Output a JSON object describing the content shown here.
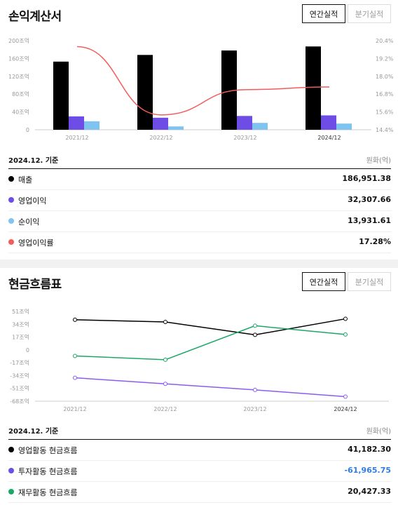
{
  "income": {
    "title": "손익계산서",
    "tabs": [
      {
        "label": "연간실적",
        "active": true
      },
      {
        "label": "분기실적",
        "active": false
      }
    ],
    "basis_label": "2024.12. 기준",
    "unit_label": "원화(억)",
    "rows": [
      {
        "label": "매출",
        "value": "186,951.38",
        "color": "#000000"
      },
      {
        "label": "영업이익",
        "value": "32,307.66",
        "color": "#6e4de6"
      },
      {
        "label": "순이익",
        "value": "13,931.61",
        "color": "#7fc4f0"
      },
      {
        "label": "영업이익률",
        "value": "17.28%",
        "color": "#f25c5c"
      }
    ]
  },
  "cashflow": {
    "title": "현금흐름표",
    "tabs": [
      {
        "label": "연간실적",
        "active": true
      },
      {
        "label": "분기실적",
        "active": false
      }
    ],
    "basis_label": "2024.12. 기준",
    "unit_label": "원화(억)",
    "rows": [
      {
        "label": "영업활동 현금흐름",
        "value": "41,182.30",
        "color": "#000000",
        "value_color": "#111111"
      },
      {
        "label": "투자활동 현금흐름",
        "value": "-61,965.75",
        "color": "#6e4de6",
        "value_color": "#2f7de1"
      },
      {
        "label": "재무활동 현금흐름",
        "value": "20,427.33",
        "color": "#1aa866",
        "value_color": "#111111"
      }
    ]
  },
  "chart_data": [
    {
      "type": "bar",
      "categories": [
        "2021/12",
        "2022/12",
        "2023/12",
        "2024/12"
      ],
      "series": [
        {
          "name": "매출",
          "type": "bar",
          "axis": "left",
          "color": "#000000",
          "values": [
            153000,
            168000,
            178000,
            187000
          ]
        },
        {
          "name": "영업이익",
          "type": "bar",
          "axis": "left",
          "color": "#6e4de6",
          "values": [
            30000,
            27000,
            31000,
            32300
          ]
        },
        {
          "name": "순이익",
          "type": "bar",
          "axis": "left",
          "color": "#7fc4f0",
          "values": [
            19000,
            7500,
            15500,
            13900
          ]
        },
        {
          "name": "영업이익률",
          "type": "line",
          "axis": "right",
          "color": "#f25c5c",
          "values": [
            20.0,
            15.4,
            17.1,
            17.28
          ]
        }
      ],
      "left_ticks": [
        "0",
        "40조억",
        "80조억",
        "120조억",
        "160조억",
        "200조억"
      ],
      "left_ylim": [
        0,
        200000
      ],
      "right_ticks": [
        "14.4%",
        "15.6%",
        "16.8%",
        "18.0%",
        "19.2%",
        "20.4%"
      ],
      "right_ylim": [
        14.4,
        20.4
      ]
    },
    {
      "type": "line",
      "categories": [
        "2021/12",
        "2022/12",
        "2023/12",
        "2024/12"
      ],
      "series": [
        {
          "name": "영업활동 현금흐름",
          "color": "#000000",
          "values": [
            40000,
            37000,
            20000,
            41182
          ]
        },
        {
          "name": "투자활동 현금흐름",
          "color": "#8a5cf0",
          "values": [
            -37000,
            -45000,
            -53000,
            -61966
          ]
        },
        {
          "name": "재무활동 현금흐름",
          "color": "#1aa866",
          "values": [
            -8000,
            -13000,
            32000,
            20427
          ]
        }
      ],
      "y_ticks": [
        {
          "label": "51조억",
          "v": 51000
        },
        {
          "label": "34조억",
          "v": 34000
        },
        {
          "label": "17조억",
          "v": 17000
        },
        {
          "label": "0",
          "v": 0
        },
        {
          "label": "-17조억",
          "v": -17000
        },
        {
          "label": "-34조억",
          "v": -34000
        },
        {
          "label": "-51조억",
          "v": -51000
        },
        {
          "label": "-68조억",
          "v": -68000
        }
      ],
      "ylim": [
        -68000,
        51000
      ]
    }
  ]
}
